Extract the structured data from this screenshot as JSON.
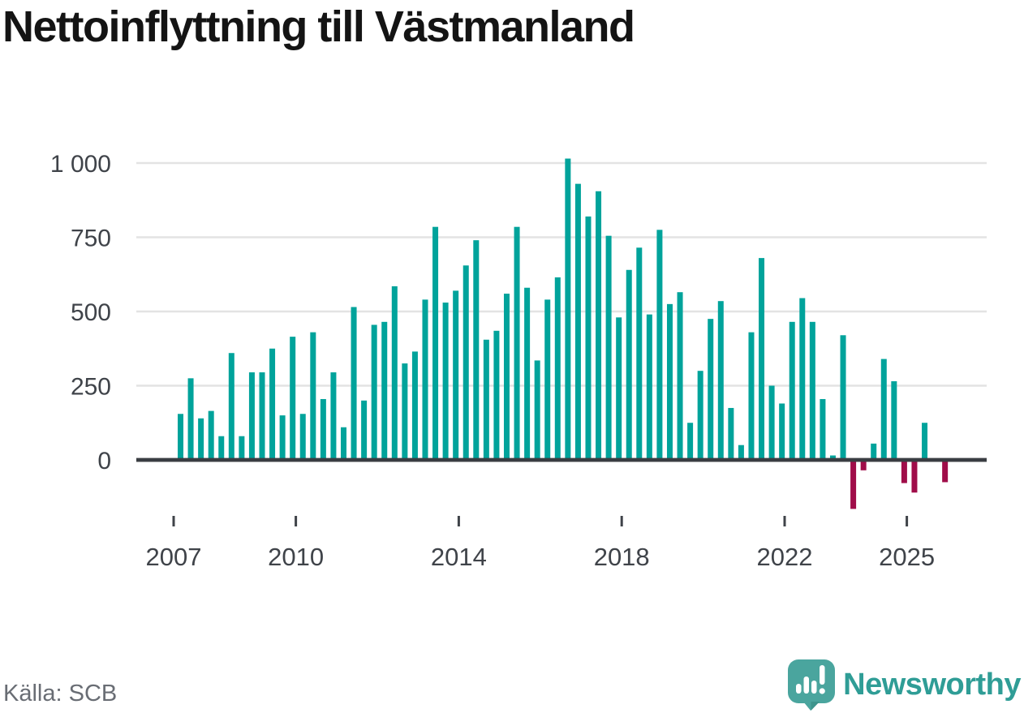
{
  "title": "Nettoinflyttning till Västmanland",
  "source": "Källa: SCB",
  "brand": {
    "name": "Newsworthy"
  },
  "colors": {
    "positive": "#00a39b",
    "negative": "#a00d49",
    "grid": "#e3e3e3",
    "axis": "#3a3d42",
    "tick": "#3f4349",
    "label": "#3f4349",
    "title": "#141414",
    "source": "#696d74",
    "brand": "#2f9d96"
  },
  "chart_data": {
    "type": "bar",
    "title": "Nettoinflyttning till Västmanland",
    "frequency": "quarterly",
    "x_start": {
      "year": 2007,
      "quarter": 1
    },
    "x_end": {
      "year": 2025,
      "quarter": 4
    },
    "values": [
      155,
      275,
      140,
      165,
      80,
      360,
      80,
      295,
      295,
      375,
      150,
      415,
      155,
      430,
      205,
      295,
      110,
      515,
      200,
      455,
      465,
      585,
      325,
      365,
      540,
      785,
      530,
      570,
      655,
      740,
      405,
      435,
      560,
      785,
      580,
      335,
      540,
      615,
      1015,
      930,
      820,
      905,
      755,
      480,
      640,
      715,
      490,
      775,
      525,
      565,
      125,
      300,
      475,
      535,
      175,
      50,
      430,
      680,
      250,
      190,
      465,
      545,
      465,
      205,
      15,
      420,
      -165,
      -35,
      55,
      340,
      265,
      -78,
      -110,
      125,
      0,
      -75
    ],
    "x_tick_years": [
      2007,
      2010,
      2014,
      2018,
      2022,
      2025
    ],
    "y_ticks": [
      0,
      250,
      500,
      750,
      1000
    ],
    "y_tick_labels": [
      "0",
      "250",
      "500",
      "750",
      "1 000"
    ],
    "ylim": [
      -180,
      1050
    ],
    "xlabel": "",
    "ylabel": "",
    "grid": true,
    "legend": "none"
  }
}
